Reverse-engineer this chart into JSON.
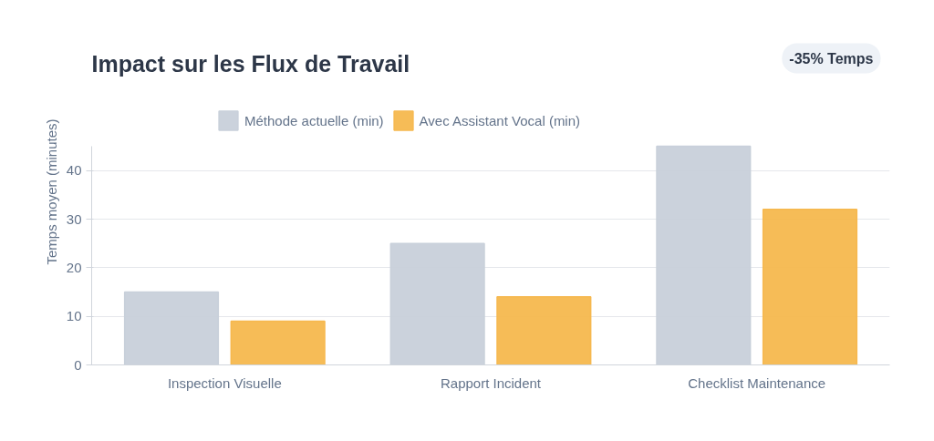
{
  "chart_data": {
    "type": "bar",
    "title": "Impact sur les Flux de Travail",
    "annotations": [
      "-35% Temps"
    ],
    "ylabel": "Temps moyen (minutes)",
    "categories": [
      "Inspection Visuelle",
      "Rapport Incident",
      "Checklist Maintenance"
    ],
    "series": [
      {
        "name": "Méthode actuelle (min)",
        "color": "#c8d0da",
        "values": [
          15,
          25,
          45
        ]
      },
      {
        "name": "Avec Assistant Vocal (min)",
        "color": "#f6b84e",
        "values": [
          9,
          14,
          32
        ]
      }
    ],
    "ylim": [
      0,
      45
    ],
    "yticks": [
      0,
      10,
      20,
      30,
      40
    ],
    "grid": "y",
    "legend": "top"
  }
}
